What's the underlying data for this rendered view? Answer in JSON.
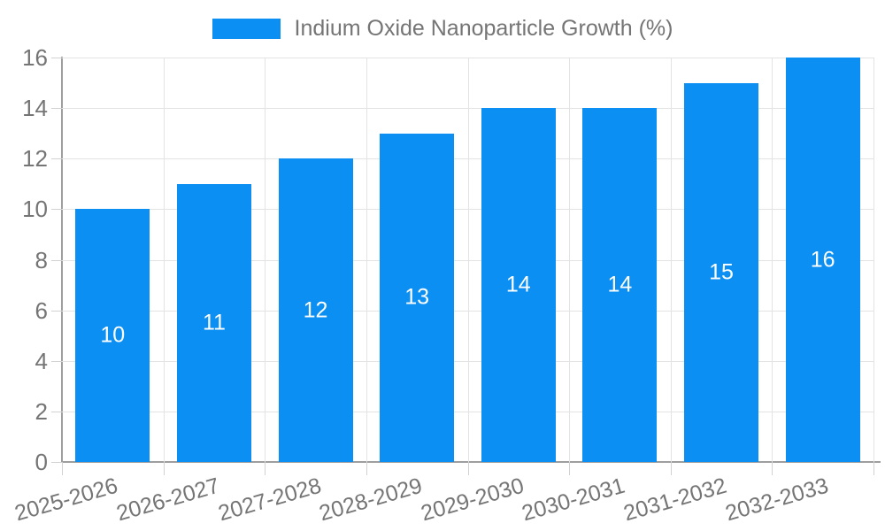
{
  "chart_data": {
    "type": "bar",
    "legend": "Indium Oxide Nanoparticle Growth (%)",
    "legend_position": "top-center",
    "categories": [
      "2025-2026",
      "2026-2027",
      "2027-2028",
      "2028-2029",
      "2029-2030",
      "2030-2031",
      "2031-2032",
      "2032-2033"
    ],
    "values": [
      10,
      11,
      12,
      13,
      14,
      14,
      15,
      16
    ],
    "bar_value_labels": [
      "10",
      "11",
      "12",
      "13",
      "14",
      "14",
      "15",
      "16"
    ],
    "title": "",
    "xlabel": "",
    "ylabel": "",
    "ylim": [
      0,
      16
    ],
    "yticks": [
      0,
      2,
      4,
      6,
      8,
      10,
      12,
      14,
      16
    ],
    "grid": true,
    "colors": {
      "bar": "#0b8ff2",
      "bar_label": "#ffffff",
      "axis": "#9e9e9e",
      "gridline": "#e3e3e3",
      "tick": "#d2d2d2",
      "label_text": "#757575",
      "background": "#ffffff"
    }
  }
}
